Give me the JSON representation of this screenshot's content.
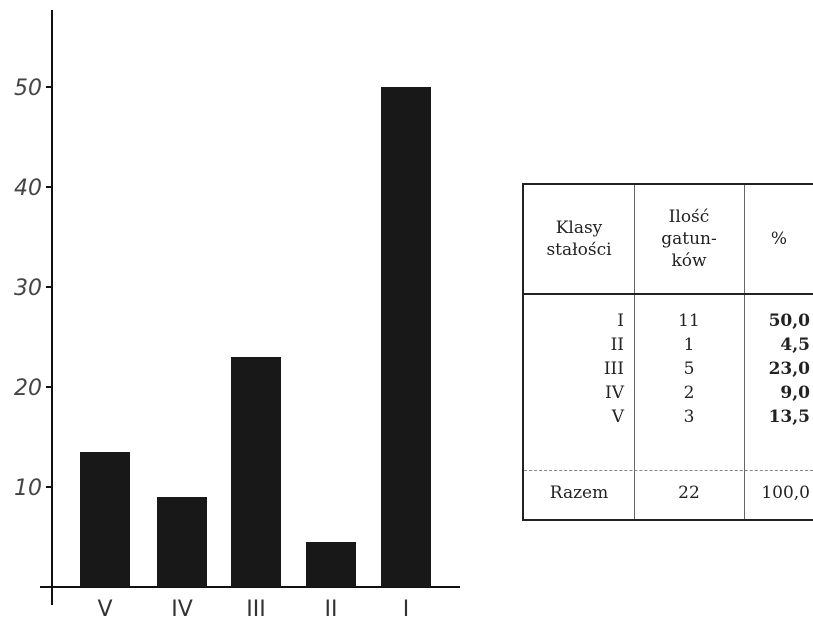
{
  "chart_data": {
    "type": "bar",
    "categories": [
      "V",
      "IV",
      "III",
      "II",
      "I"
    ],
    "values": [
      13.5,
      9.0,
      23.0,
      4.5,
      50.0
    ],
    "yticks": [
      "10",
      "20",
      "30",
      "40",
      "50"
    ],
    "ylim": [
      0,
      60
    ],
    "title": "",
    "xlabel": "",
    "ylabel": "",
    "bar_color": "#181818"
  },
  "table": {
    "headers": [
      [
        "Klasy",
        "stałości"
      ],
      [
        "Ilość",
        "gatun-",
        "ków"
      ],
      [
        "%"
      ]
    ],
    "rows": [
      {
        "klasa": "I",
        "ilosc": "11",
        "procent": "50,0"
      },
      {
        "klasa": "II",
        "ilosc": "1",
        "procent": "4,5"
      },
      {
        "klasa": "III",
        "ilosc": "5",
        "procent": "23,0"
      },
      {
        "klasa": "IV",
        "ilosc": "2",
        "procent": "9,0"
      },
      {
        "klasa": "V",
        "ilosc": "3",
        "procent": "13,5"
      }
    ],
    "total": {
      "label": "Razem",
      "ilosc": "22",
      "procent": "100,0"
    }
  }
}
